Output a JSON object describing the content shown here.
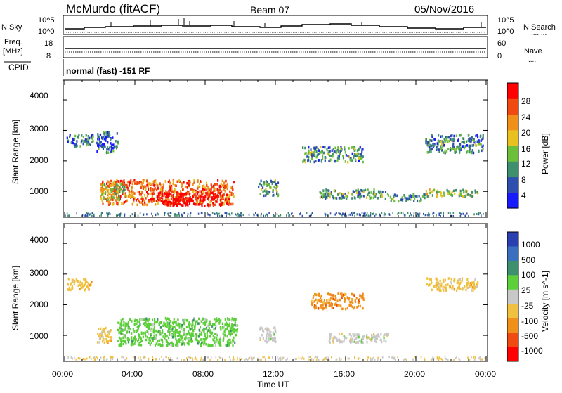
{
  "header": {
    "site_label": "McMurdo (fitACF)",
    "beam_label": "Beam 07",
    "date_label": "05/Nov/2016"
  },
  "panels": {
    "nsky_label": "N.Sky",
    "nsky_ticks": [
      "10^5",
      "10^0"
    ],
    "nsearch_label": "N.Search",
    "nsearch_ticks": [
      "10^5",
      "10^0"
    ],
    "freq_label": "Freq.",
    "freq_unit": "[MHz]",
    "freq_ticks": [
      "18",
      "8"
    ],
    "nave_label": "Nave",
    "nave_ticks": [
      "60",
      "0"
    ],
    "cpid_label": "CPID",
    "cpid_value": "normal (fast) -151 RF"
  },
  "chart_data": [
    {
      "type": "heatmap",
      "name": "power",
      "ylabel": "Slant Range [km]",
      "yticks": [
        "4000",
        "3000",
        "2000",
        "1000"
      ],
      "ylim": [
        200,
        4600
      ],
      "xlim": [
        0,
        24
      ],
      "colorbar_label": "Power [dB]",
      "colorbar_ticks": [
        "28",
        "24",
        "20",
        "16",
        "12",
        "8",
        "4"
      ],
      "colorbar_colors": [
        "#1a1aff",
        "#2f4fae",
        "#3d8f6e",
        "#6bbf3a",
        "#e8c020",
        "#f0901a",
        "#ee4a12",
        "#ff0000"
      ],
      "regions": [
        {
          "t": [
            2.0,
            9.6
          ],
          "r": [
            600,
            1400
          ],
          "level": 0.75
        },
        {
          "t": [
            5.0,
            9.0
          ],
          "r": [
            550,
            1000
          ],
          "level": 1.0
        },
        {
          "t": [
            2.0,
            3.4
          ],
          "r": [
            750,
            1300
          ],
          "level": 0.5
        },
        {
          "t": [
            0.1,
            1.6
          ],
          "r": [
            2500,
            2900
          ],
          "level": 0.25
        },
        {
          "t": [
            1.8,
            3.0
          ],
          "r": [
            2300,
            3000
          ],
          "level": 0.2
        },
        {
          "t": [
            11.0,
            12.2
          ],
          "r": [
            900,
            1400
          ],
          "level": 0.35
        },
        {
          "t": [
            14.5,
            18.5
          ],
          "r": [
            800,
            1100
          ],
          "level": 0.35
        },
        {
          "t": [
            18.5,
            20.5
          ],
          "r": [
            700,
            950
          ],
          "level": 0.3
        },
        {
          "t": [
            20.5,
            23.5
          ],
          "r": [
            850,
            1100
          ],
          "level": 0.45
        },
        {
          "t": [
            13.5,
            17.0
          ],
          "r": [
            2000,
            2500
          ],
          "level": 0.3
        },
        {
          "t": [
            20.5,
            23.8
          ],
          "r": [
            2300,
            2900
          ],
          "level": 0.3
        }
      ]
    },
    {
      "type": "heatmap",
      "name": "velocity",
      "ylabel": "Slant Range [km]",
      "yticks": [
        "4000",
        "3000",
        "2000",
        "1000"
      ],
      "ylim": [
        200,
        4600
      ],
      "xlim": [
        0,
        24
      ],
      "xlabel": "Time UT",
      "xticks": [
        "00:00",
        "04:00",
        "08:00",
        "12:00",
        "16:00",
        "20:00",
        "00:00"
      ],
      "colorbar_label": "Velocity [m s^-1]",
      "colorbar_ticks": [
        "1000",
        "500",
        "100",
        "25",
        "-25",
        "-100",
        "-500",
        "-1000"
      ],
      "colorbar_colors": [
        "#2a3fb0",
        "#3a6fc0",
        "#3d8f6e",
        "#5ccf3a",
        "#c8c8c8",
        "#f0c040",
        "#f0901a",
        "#ee4a12",
        "#ff0000"
      ],
      "regions": [
        {
          "t": [
            3.0,
            9.8
          ],
          "r": [
            700,
            1600
          ],
          "level": "100"
        },
        {
          "t": [
            1.8,
            2.6
          ],
          "r": [
            800,
            1300
          ],
          "level": "-25"
        },
        {
          "t": [
            11.0,
            12.0
          ],
          "r": [
            800,
            1300
          ],
          "level": "25"
        },
        {
          "t": [
            15.0,
            18.5
          ],
          "r": [
            800,
            1100
          ],
          "level": "25"
        },
        {
          "t": [
            14.0,
            17.0
          ],
          "r": [
            1900,
            2400
          ],
          "level": "-100"
        },
        {
          "t": [
            20.5,
            23.5
          ],
          "r": [
            2500,
            2900
          ],
          "level": "-25"
        },
        {
          "t": [
            0.1,
            1.5
          ],
          "r": [
            2500,
            2900
          ],
          "level": "-25"
        }
      ]
    }
  ]
}
